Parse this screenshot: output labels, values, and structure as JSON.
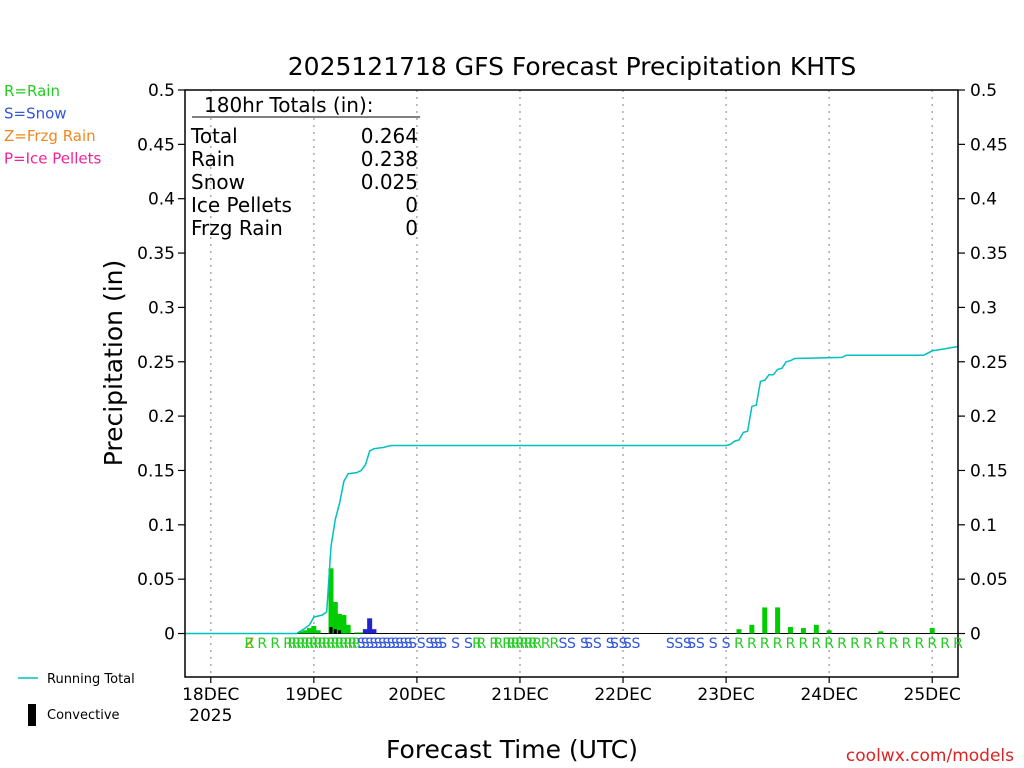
{
  "chart_data": {
    "type": "bar",
    "title": "2025121718 GFS Forecast Precipitation KHTS",
    "xlabel": "Forecast Time (UTC)",
    "ylabel": "Precipitation (in)",
    "credit": "coolwx.com/models",
    "ylim": [
      -0.04,
      0.5
    ],
    "yticks": [
      0,
      0.05,
      0.1,
      0.15,
      0.2,
      0.25,
      0.3,
      0.35,
      0.4,
      0.45,
      0.5
    ],
    "ytick_labels": [
      "0",
      "0.05",
      "0.1",
      "0.15",
      "0.2",
      "0.25",
      "0.3",
      "0.35",
      "0.4",
      "0.45",
      "0.5"
    ],
    "x_unit": "forecast hour",
    "xlim": [
      0,
      180
    ],
    "xticks": [
      {
        "hour": 6,
        "label": "18DEC",
        "sublabel": "2025"
      },
      {
        "hour": 30,
        "label": "19DEC",
        "sublabel": ""
      },
      {
        "hour": 54,
        "label": "20DEC",
        "sublabel": ""
      },
      {
        "hour": 78,
        "label": "21DEC",
        "sublabel": ""
      },
      {
        "hour": 102,
        "label": "22DEC",
        "sublabel": ""
      },
      {
        "hour": 126,
        "label": "23DEC",
        "sublabel": ""
      },
      {
        "hour": 150,
        "label": "24DEC",
        "sublabel": ""
      },
      {
        "hour": 174,
        "label": "25DEC",
        "sublabel": ""
      }
    ],
    "legend_left": [
      {
        "text": "R=Rain",
        "color": "#22cc22"
      },
      {
        "text": "S=Snow",
        "color": "#3355dd"
      },
      {
        "text": "Z=Frzg Rain",
        "color": "#ee8822"
      },
      {
        "text": "P=Ice Pellets",
        "color": "#ee2299"
      }
    ],
    "legend_bottom": [
      {
        "text": "Running Total",
        "kind": "line",
        "color": "#00c0c0"
      },
      {
        "text": "Convective",
        "kind": "bar",
        "color": "#000000"
      }
    ],
    "totals": {
      "header": "180hr Totals (in):",
      "rows": [
        {
          "label": "Total",
          "value": "0.264"
        },
        {
          "label": "Rain",
          "value": "0.238"
        },
        {
          "label": "Snow",
          "value": "0.025"
        },
        {
          "label": "Ice Pellets",
          "value": "0"
        },
        {
          "label": "Frzg Rain",
          "value": "0"
        }
      ]
    },
    "series": [
      {
        "name": "Rain",
        "color": "#00cc00",
        "points": [
          [
            27,
            0.002
          ],
          [
            28,
            0.003
          ],
          [
            29,
            0.005
          ],
          [
            30,
            0.007
          ],
          [
            31,
            0.003
          ],
          [
            34,
            0.06
          ],
          [
            35,
            0.029
          ],
          [
            36,
            0.018
          ],
          [
            37,
            0.017
          ],
          [
            38,
            0.008
          ],
          [
            40,
            0.001
          ],
          [
            41,
            0.001
          ],
          [
            42,
            0.001
          ],
          [
            129,
            0.004
          ],
          [
            132,
            0.008
          ],
          [
            135,
            0.024
          ],
          [
            138,
            0.024
          ],
          [
            141,
            0.006
          ],
          [
            144,
            0.005
          ],
          [
            147,
            0.008
          ],
          [
            150,
            0.003
          ],
          [
            162,
            0.002
          ],
          [
            174,
            0.005
          ]
        ]
      },
      {
        "name": "Snow",
        "color": "#2222cc",
        "points": [
          [
            42,
            0.004
          ],
          [
            43,
            0.014
          ],
          [
            44,
            0.004
          ]
        ]
      },
      {
        "name": "Convective",
        "color": "#000000",
        "points": [
          [
            34,
            0.006
          ],
          [
            35,
            0.004
          ],
          [
            36,
            0.003
          ]
        ]
      },
      {
        "name": "Running Total",
        "color": "#00c0c0",
        "kind": "line",
        "points": [
          [
            0,
            0
          ],
          [
            26,
            0
          ],
          [
            28,
            0.005
          ],
          [
            29,
            0.008
          ],
          [
            30,
            0.015
          ],
          [
            32,
            0.017
          ],
          [
            33,
            0.02
          ],
          [
            34,
            0.08
          ],
          [
            35,
            0.105
          ],
          [
            36,
            0.12
          ],
          [
            37,
            0.14
          ],
          [
            38,
            0.147
          ],
          [
            40,
            0.148
          ],
          [
            41,
            0.15
          ],
          [
            42,
            0.155
          ],
          [
            43,
            0.168
          ],
          [
            44,
            0.17
          ],
          [
            46,
            0.171
          ],
          [
            48,
            0.173
          ],
          [
            126,
            0.173
          ],
          [
            127,
            0.174
          ],
          [
            128,
            0.177
          ],
          [
            129,
            0.178
          ],
          [
            130,
            0.185
          ],
          [
            131,
            0.186
          ],
          [
            132,
            0.209
          ],
          [
            133,
            0.21
          ],
          [
            134,
            0.232
          ],
          [
            135,
            0.233
          ],
          [
            136,
            0.238
          ],
          [
            137,
            0.238
          ],
          [
            138,
            0.243
          ],
          [
            139,
            0.244
          ],
          [
            140,
            0.25
          ],
          [
            141,
            0.251
          ],
          [
            142,
            0.253
          ],
          [
            153,
            0.254
          ],
          [
            154,
            0.256
          ],
          [
            172,
            0.256
          ],
          [
            174,
            0.26
          ],
          [
            177,
            0.262
          ],
          [
            180,
            0.264
          ]
        ]
      }
    ],
    "ptype_codes": [
      {
        "hour": 15,
        "code": "Z",
        "color": "#cc9900"
      },
      {
        "hour": 15,
        "code": "R",
        "color": "#22cc22"
      },
      {
        "hour": 18,
        "code": "R",
        "color": "#22cc22"
      },
      {
        "hour": 21,
        "code": "R",
        "color": "#22cc22"
      },
      {
        "hour": 24,
        "code": "R",
        "color": "#22cc22"
      },
      {
        "hour": 25,
        "code": "R",
        "color": "#22cc22"
      },
      {
        "hour": 26,
        "code": "R",
        "color": "#22cc22"
      },
      {
        "hour": 27,
        "code": "R",
        "color": "#22cc22"
      },
      {
        "hour": 28,
        "code": "R",
        "color": "#22cc22"
      },
      {
        "hour": 29,
        "code": "R",
        "color": "#22cc22"
      },
      {
        "hour": 30,
        "code": "R",
        "color": "#22cc22"
      },
      {
        "hour": 31,
        "code": "R",
        "color": "#22cc22"
      },
      {
        "hour": 32,
        "code": "R",
        "color": "#22cc22"
      },
      {
        "hour": 33,
        "code": "R",
        "color": "#22cc22"
      },
      {
        "hour": 34,
        "code": "R",
        "color": "#22cc22"
      },
      {
        "hour": 35,
        "code": "R",
        "color": "#22cc22"
      },
      {
        "hour": 36,
        "code": "R",
        "color": "#22cc22"
      },
      {
        "hour": 37,
        "code": "R",
        "color": "#22cc22"
      },
      {
        "hour": 38,
        "code": "R",
        "color": "#22cc22"
      },
      {
        "hour": 39,
        "code": "R",
        "color": "#22cc22"
      },
      {
        "hour": 40,
        "code": "R",
        "color": "#22cc22"
      },
      {
        "hour": 41,
        "code": "S",
        "color": "#3355dd"
      },
      {
        "hour": 42,
        "code": "S",
        "color": "#3355dd"
      },
      {
        "hour": 43,
        "code": "S",
        "color": "#3355dd"
      },
      {
        "hour": 44,
        "code": "S",
        "color": "#3355dd"
      },
      {
        "hour": 45,
        "code": "S",
        "color": "#3355dd"
      },
      {
        "hour": 46,
        "code": "S",
        "color": "#3355dd"
      },
      {
        "hour": 47,
        "code": "S",
        "color": "#3355dd"
      },
      {
        "hour": 48,
        "code": "S",
        "color": "#3355dd"
      },
      {
        "hour": 49,
        "code": "S",
        "color": "#3355dd"
      },
      {
        "hour": 50,
        "code": "S",
        "color": "#3355dd"
      },
      {
        "hour": 51,
        "code": "S",
        "color": "#3355dd"
      },
      {
        "hour": 52,
        "code": "S",
        "color": "#3355dd"
      },
      {
        "hour": 53,
        "code": "S",
        "color": "#3355dd"
      },
      {
        "hour": 55,
        "code": "S",
        "color": "#3355dd"
      },
      {
        "hour": 57,
        "code": "S",
        "color": "#3355dd"
      },
      {
        "hour": 58,
        "code": "S",
        "color": "#3355dd"
      },
      {
        "hour": 59,
        "code": "S",
        "color": "#3355dd"
      },
      {
        "hour": 60,
        "code": "S",
        "color": "#3355dd"
      },
      {
        "hour": 63,
        "code": "S",
        "color": "#3355dd"
      },
      {
        "hour": 66,
        "code": "S",
        "color": "#3355dd"
      },
      {
        "hour": 68,
        "code": "R",
        "color": "#22cc22"
      },
      {
        "hour": 69,
        "code": "R",
        "color": "#22cc22"
      },
      {
        "hour": 72,
        "code": "R",
        "color": "#22cc22"
      },
      {
        "hour": 73,
        "code": "R",
        "color": "#22cc22"
      },
      {
        "hour": 75,
        "code": "R",
        "color": "#22cc22"
      },
      {
        "hour": 76,
        "code": "R",
        "color": "#22cc22"
      },
      {
        "hour": 77,
        "code": "R",
        "color": "#22cc22"
      },
      {
        "hour": 78,
        "code": "R",
        "color": "#22cc22"
      },
      {
        "hour": 79,
        "code": "R",
        "color": "#22cc22"
      },
      {
        "hour": 80,
        "code": "R",
        "color": "#22cc22"
      },
      {
        "hour": 81,
        "code": "R",
        "color": "#22cc22"
      },
      {
        "hour": 82,
        "code": "R",
        "color": "#22cc22"
      },
      {
        "hour": 84,
        "code": "R",
        "color": "#22cc22"
      },
      {
        "hour": 86,
        "code": "R",
        "color": "#22cc22"
      },
      {
        "hour": 88,
        "code": "S",
        "color": "#3355dd"
      },
      {
        "hour": 90,
        "code": "S",
        "color": "#3355dd"
      },
      {
        "hour": 93,
        "code": "S",
        "color": "#3355dd"
      },
      {
        "hour": 94,
        "code": "S",
        "color": "#3355dd"
      },
      {
        "hour": 96,
        "code": "S",
        "color": "#3355dd"
      },
      {
        "hour": 99,
        "code": "S",
        "color": "#3355dd"
      },
      {
        "hour": 100,
        "code": "S",
        "color": "#3355dd"
      },
      {
        "hour": 102,
        "code": "S",
        "color": "#3355dd"
      },
      {
        "hour": 103,
        "code": "S",
        "color": "#3355dd"
      },
      {
        "hour": 105,
        "code": "S",
        "color": "#3355dd"
      },
      {
        "hour": 113,
        "code": "S",
        "color": "#3355dd"
      },
      {
        "hour": 115,
        "code": "S",
        "color": "#3355dd"
      },
      {
        "hour": 117,
        "code": "S",
        "color": "#3355dd"
      },
      {
        "hour": 118,
        "code": "S",
        "color": "#3355dd"
      },
      {
        "hour": 120,
        "code": "S",
        "color": "#3355dd"
      },
      {
        "hour": 123,
        "code": "S",
        "color": "#3355dd"
      },
      {
        "hour": 126,
        "code": "S",
        "color": "#3355dd"
      },
      {
        "hour": 129,
        "code": "R",
        "color": "#22cc22"
      },
      {
        "hour": 132,
        "code": "R",
        "color": "#22cc22"
      },
      {
        "hour": 135,
        "code": "R",
        "color": "#22cc22"
      },
      {
        "hour": 138,
        "code": "R",
        "color": "#22cc22"
      },
      {
        "hour": 141,
        "code": "R",
        "color": "#22cc22"
      },
      {
        "hour": 144,
        "code": "R",
        "color": "#22cc22"
      },
      {
        "hour": 147,
        "code": "R",
        "color": "#22cc22"
      },
      {
        "hour": 150,
        "code": "R",
        "color": "#22cc22"
      },
      {
        "hour": 153,
        "code": "R",
        "color": "#22cc22"
      },
      {
        "hour": 156,
        "code": "R",
        "color": "#22cc22"
      },
      {
        "hour": 159,
        "code": "R",
        "color": "#22cc22"
      },
      {
        "hour": 162,
        "code": "R",
        "color": "#22cc22"
      },
      {
        "hour": 165,
        "code": "R",
        "color": "#22cc22"
      },
      {
        "hour": 168,
        "code": "R",
        "color": "#22cc22"
      },
      {
        "hour": 171,
        "code": "R",
        "color": "#22cc22"
      },
      {
        "hour": 174,
        "code": "R",
        "color": "#22cc22"
      },
      {
        "hour": 177,
        "code": "R",
        "color": "#22cc22"
      },
      {
        "hour": 180,
        "code": "R",
        "color": "#22cc22"
      }
    ]
  }
}
